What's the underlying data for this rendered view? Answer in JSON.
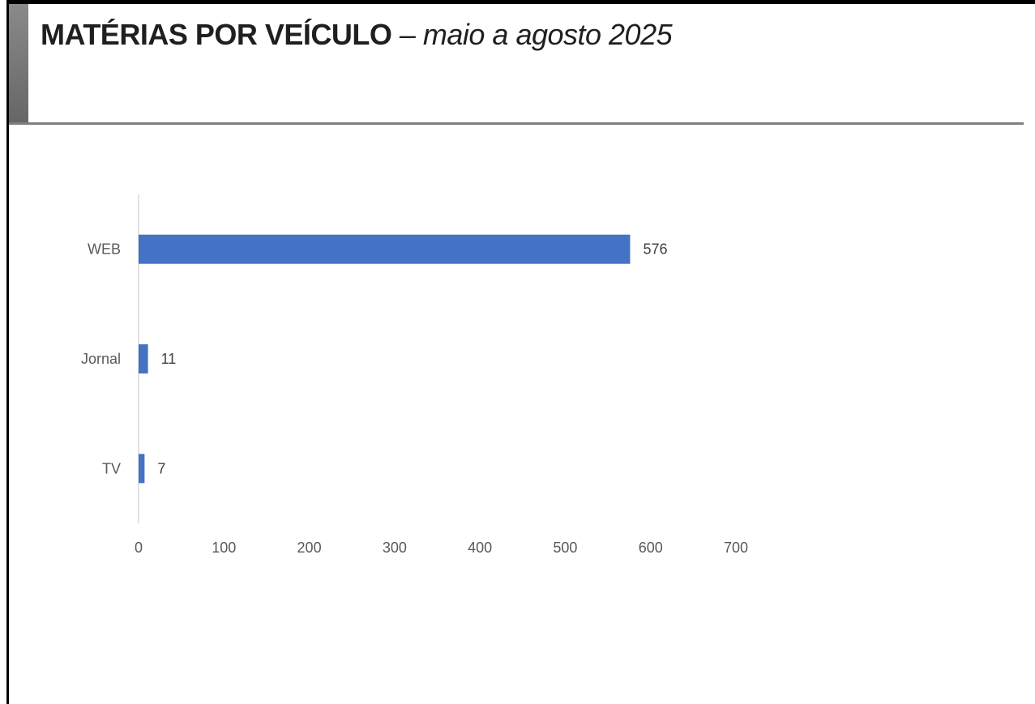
{
  "header": {
    "title_bold": "MATÉRIAS POR VEÍCULO",
    "title_rest": " – maio a agosto 2025"
  },
  "chart_data": {
    "type": "bar",
    "orientation": "horizontal",
    "title": "",
    "xlabel": "",
    "ylabel": "",
    "categories": [
      "WEB",
      "Jornal",
      "TV"
    ],
    "values": [
      576,
      11,
      7
    ],
    "xlim": [
      0,
      700
    ],
    "ticks": [
      0,
      100,
      200,
      300,
      400,
      500,
      600,
      700
    ],
    "data_labels": true,
    "grid": false,
    "legend": "none",
    "bar_color": "#4472C4",
    "axis_color": "#d9d9d9"
  }
}
